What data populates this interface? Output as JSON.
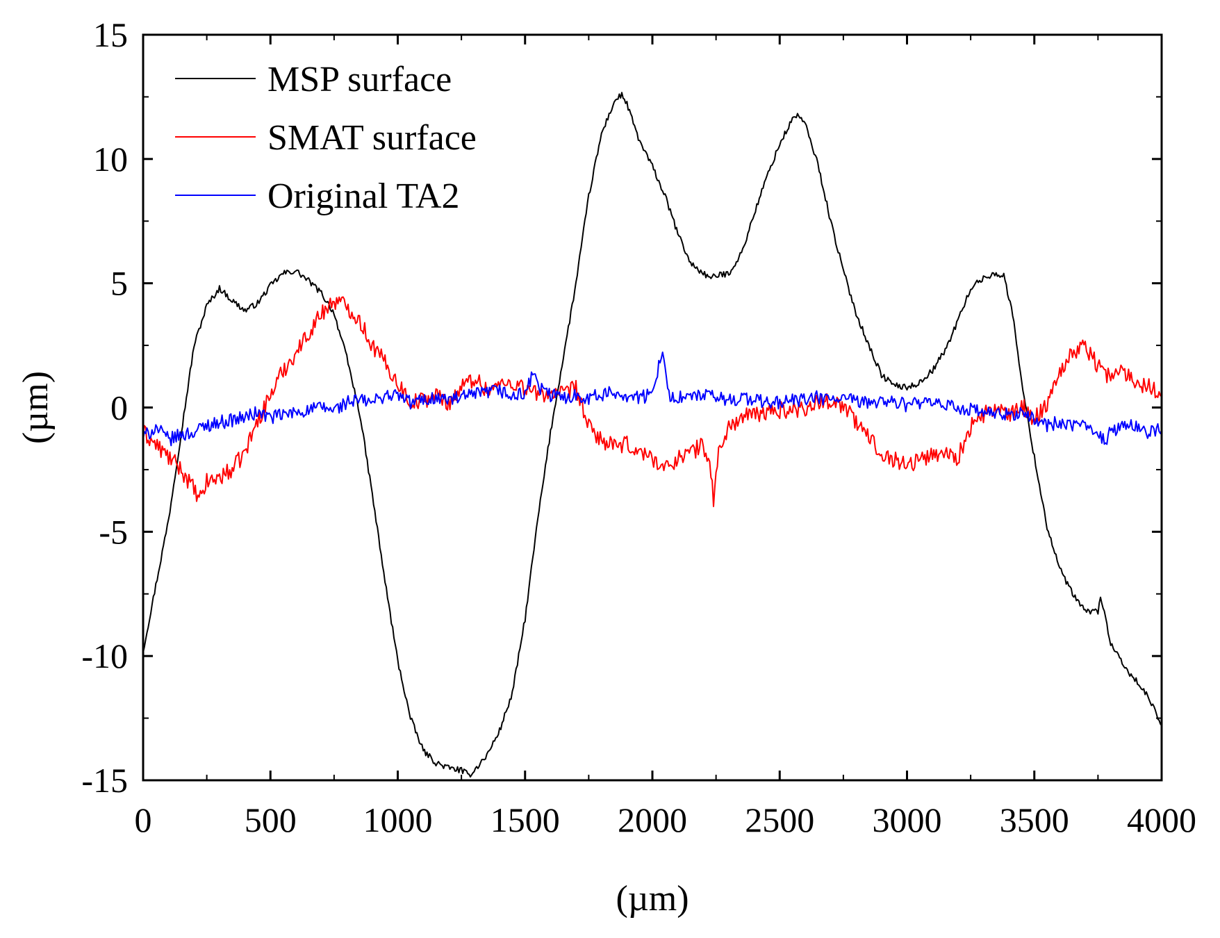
{
  "chart_data": {
    "type": "line",
    "title": "",
    "xlabel": "(µm)",
    "ylabel": "(µm)",
    "xlim": [
      0,
      4000
    ],
    "ylim": [
      -15,
      15
    ],
    "xticks": [
      0,
      500,
      1000,
      1500,
      2000,
      2500,
      3000,
      3500,
      4000
    ],
    "xtick_labels": [
      "0",
      "500",
      "1000",
      "1500",
      "2000",
      "2500",
      "3000",
      "3500",
      "4000"
    ],
    "yticks": [
      -15,
      -10,
      -5,
      0,
      5,
      10,
      15
    ],
    "ytick_labels": [
      "-15",
      "-10",
      "-5",
      "0",
      "5",
      "10",
      "15"
    ],
    "grid": false,
    "legend": "top-left",
    "series": [
      {
        "name": "MSP surface",
        "color": "#000000",
        "x": [
          0,
          100,
          200,
          250,
          300,
          350,
          400,
          450,
          500,
          550,
          600,
          650,
          700,
          750,
          800,
          850,
          900,
          950,
          1000,
          1050,
          1100,
          1150,
          1200,
          1250,
          1280,
          1300,
          1350,
          1400,
          1450,
          1500,
          1550,
          1600,
          1650,
          1700,
          1750,
          1800,
          1850,
          1880,
          1900,
          1950,
          2000,
          2050,
          2100,
          2150,
          2200,
          2230,
          2250,
          2300,
          2350,
          2400,
          2450,
          2500,
          2550,
          2570,
          2600,
          2650,
          2700,
          2750,
          2800,
          2850,
          2900,
          2950,
          3000,
          3050,
          3100,
          3150,
          3200,
          3250,
          3300,
          3350,
          3380,
          3420,
          3450,
          3500,
          3550,
          3600,
          3650,
          3700,
          3750,
          3760,
          3780,
          3800,
          3850,
          3900,
          3950,
          4000
        ],
        "y": [
          -9.8,
          -4.5,
          2.5,
          4.1,
          4.8,
          4.3,
          3.9,
          4.2,
          4.9,
          5.4,
          5.5,
          5.1,
          4.6,
          3.8,
          2.0,
          -0.2,
          -3.5,
          -7.0,
          -10.2,
          -12.5,
          -13.8,
          -14.3,
          -14.5,
          -14.6,
          -14.8,
          -14.6,
          -14.0,
          -13.0,
          -11.5,
          -8.5,
          -4.5,
          -1.0,
          2.0,
          5.0,
          8.5,
          11.0,
          12.3,
          12.6,
          12.2,
          10.7,
          9.7,
          8.5,
          7.0,
          5.8,
          5.4,
          5.2,
          5.3,
          5.4,
          6.2,
          7.8,
          9.3,
          10.6,
          11.6,
          11.8,
          11.4,
          9.8,
          7.5,
          5.5,
          3.8,
          2.5,
          1.3,
          0.9,
          0.8,
          1.0,
          1.5,
          2.3,
          3.5,
          4.8,
          5.2,
          5.4,
          5.3,
          3.5,
          1.0,
          -2.0,
          -4.8,
          -6.5,
          -7.5,
          -8.2,
          -8.2,
          -7.6,
          -8.5,
          -9.5,
          -10.4,
          -11.0,
          -11.7,
          -12.8
        ]
      },
      {
        "name": "SMAT surface",
        "color": "#ff0000",
        "x": [
          0,
          50,
          100,
          150,
          200,
          220,
          250,
          300,
          350,
          400,
          450,
          500,
          550,
          600,
          650,
          700,
          750,
          800,
          850,
          900,
          950,
          1000,
          1050,
          1100,
          1150,
          1200,
          1250,
          1300,
          1350,
          1400,
          1450,
          1500,
          1550,
          1600,
          1650,
          1700,
          1750,
          1800,
          1850,
          1900,
          1950,
          2000,
          2050,
          2100,
          2150,
          2200,
          2230,
          2240,
          2260,
          2300,
          2350,
          2400,
          2450,
          2500,
          2550,
          2600,
          2650,
          2700,
          2750,
          2800,
          2850,
          2900,
          2950,
          3000,
          3050,
          3100,
          3150,
          3200,
          3250,
          3300,
          3350,
          3400,
          3450,
          3500,
          3550,
          3600,
          3650,
          3700,
          3750,
          3800,
          3850,
          3900,
          3950,
          4000
        ],
        "y": [
          -1.0,
          -1.5,
          -2.0,
          -2.5,
          -3.3,
          -3.8,
          -3.0,
          -2.8,
          -2.5,
          -1.8,
          -0.5,
          0.5,
          1.5,
          2.2,
          3.0,
          3.8,
          4.3,
          4.1,
          3.5,
          2.5,
          1.8,
          1.0,
          0.2,
          0.3,
          0.5,
          0.2,
          0.8,
          1.2,
          0.7,
          0.9,
          1.0,
          0.8,
          0.5,
          0.6,
          0.5,
          0.8,
          -0.8,
          -1.3,
          -1.6,
          -1.5,
          -1.8,
          -2.0,
          -2.5,
          -2.0,
          -1.8,
          -1.5,
          -2.5,
          -3.8,
          -1.8,
          -0.8,
          -0.4,
          -0.3,
          -0.2,
          -0.1,
          -0.1,
          0.0,
          0.2,
          0.3,
          0.1,
          -0.6,
          -1.2,
          -1.8,
          -2.1,
          -2.3,
          -2.1,
          -1.9,
          -1.8,
          -2.0,
          -0.8,
          -0.3,
          0.0,
          -0.4,
          0.1,
          -0.5,
          0.2,
          1.5,
          2.2,
          2.5,
          1.7,
          1.2,
          1.5,
          1.0,
          0.9,
          0.6
        ]
      },
      {
        "name": "Original TA2",
        "color": "#0000ff",
        "x": [
          0,
          50,
          100,
          150,
          200,
          250,
          300,
          350,
          400,
          450,
          500,
          550,
          600,
          650,
          700,
          750,
          800,
          850,
          900,
          950,
          1000,
          1050,
          1100,
          1150,
          1200,
          1250,
          1300,
          1350,
          1400,
          1450,
          1500,
          1540,
          1550,
          1600,
          1650,
          1700,
          1750,
          1800,
          1850,
          1900,
          1950,
          2000,
          2040,
          2060,
          2100,
          2150,
          2200,
          2250,
          2300,
          2350,
          2400,
          2450,
          2500,
          2550,
          2600,
          2650,
          2700,
          2750,
          2800,
          2850,
          2900,
          2950,
          3000,
          3050,
          3100,
          3150,
          3200,
          3250,
          3300,
          3350,
          3400,
          3450,
          3500,
          3550,
          3600,
          3650,
          3700,
          3750,
          3780,
          3800,
          3850,
          3900,
          3950,
          4000
        ],
        "y": [
          -1.2,
          -0.8,
          -1.3,
          -1.1,
          -1.0,
          -0.7,
          -0.6,
          -0.5,
          -0.4,
          -0.2,
          -0.4,
          -0.3,
          -0.2,
          -0.1,
          0.0,
          -0.1,
          0.2,
          0.3,
          0.2,
          0.5,
          0.5,
          0.2,
          0.3,
          0.4,
          0.3,
          0.4,
          0.5,
          0.6,
          0.7,
          0.4,
          0.6,
          1.5,
          0.8,
          0.5,
          0.4,
          0.5,
          0.4,
          0.5,
          0.6,
          0.5,
          0.4,
          0.5,
          2.5,
          0.5,
          0.4,
          0.4,
          0.5,
          0.4,
          0.3,
          0.4,
          0.3,
          0.2,
          0.2,
          0.3,
          0.3,
          0.4,
          0.3,
          0.4,
          0.2,
          0.2,
          0.3,
          0.2,
          0.1,
          0.2,
          0.1,
          0.1,
          0.0,
          -0.1,
          -0.2,
          -0.3,
          -0.3,
          -0.2,
          -0.5,
          -0.7,
          -0.6,
          -0.8,
          -0.7,
          -0.9,
          -1.5,
          -0.9,
          -0.8,
          -0.7,
          -1.0,
          -0.9
        ]
      }
    ]
  }
}
